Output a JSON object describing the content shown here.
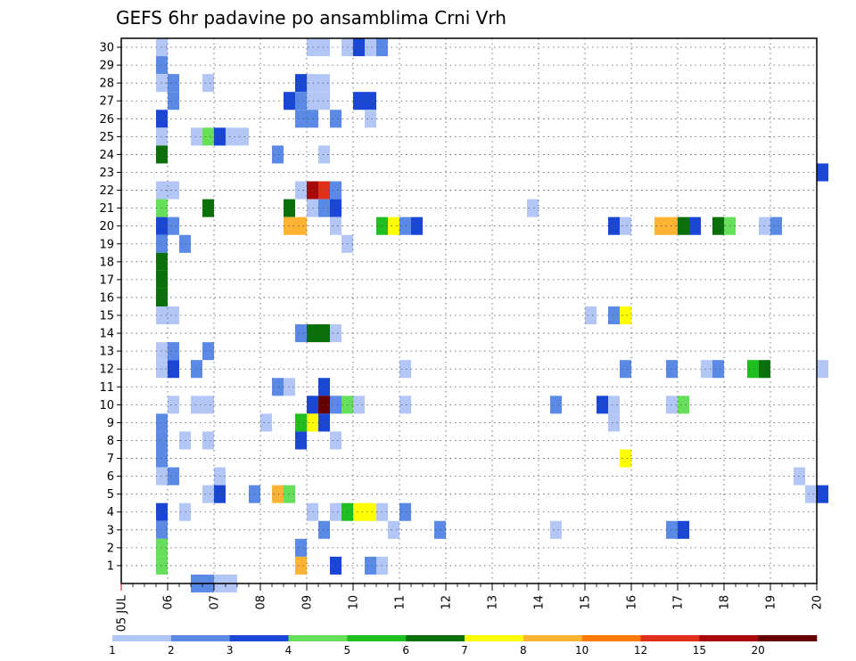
{
  "chart_data": {
    "type": "heatmap",
    "title": "GEFS 6hr padavine po ansamblima Crni Vrh",
    "x_tick_labels": [
      "05 JUL",
      "06",
      "07",
      "08",
      "09",
      "10",
      "11",
      "12",
      "13",
      "14",
      "15",
      "16",
      "17",
      "18",
      "19",
      "20"
    ],
    "y_tick_labels": [
      "1",
      "2",
      "3",
      "4",
      "5",
      "6",
      "7",
      "8",
      "9",
      "10",
      "11",
      "12",
      "13",
      "14",
      "15",
      "16",
      "17",
      "18",
      "19",
      "20",
      "21",
      "22",
      "23",
      "24",
      "25",
      "26",
      "27",
      "28",
      "29",
      "30"
    ],
    "x_range": [
      "05 JUL 00",
      "20 JUL 00"
    ],
    "x_step_hours": 6,
    "y_range": [
      0,
      30
    ],
    "grid": true,
    "colorbar": {
      "labels": [
        "1",
        "2",
        "3",
        "4",
        "5",
        "6",
        "7",
        "8",
        "10",
        "12",
        "15",
        "20"
      ],
      "colors": [
        "#b3c7f7",
        "#5a8ae6",
        "#1a46d6",
        "#66e05a",
        "#1fbf1f",
        "#0a700a",
        "#ffff00",
        "#ffb333",
        "#ff7a00",
        "#e0301a",
        "#a80a0a",
        "#660000"
      ]
    },
    "cells": [
      {
        "t": "05 JUL 18",
        "m": 30,
        "c": 1
      },
      {
        "t": "09 JUL 00",
        "m": 30,
        "c": 1
      },
      {
        "t": "09 JUL 06",
        "m": 30,
        "c": 1
      },
      {
        "t": "09 JUL 18",
        "m": 30,
        "c": 1
      },
      {
        "t": "10 JUL 00",
        "m": 30,
        "c": 3
      },
      {
        "t": "10 JUL 06",
        "m": 30,
        "c": 1
      },
      {
        "t": "10 JUL 12",
        "m": 30,
        "c": 2
      },
      {
        "t": "05 JUL 18",
        "m": 29,
        "c": 2
      },
      {
        "t": "05 JUL 18",
        "m": 28,
        "c": 1
      },
      {
        "t": "06 JUL 00",
        "m": 28,
        "c": 2
      },
      {
        "t": "06 JUL 18",
        "m": 28,
        "c": 1
      },
      {
        "t": "08 JUL 18",
        "m": 28,
        "c": 3
      },
      {
        "t": "09 JUL 00",
        "m": 28,
        "c": 1
      },
      {
        "t": "09 JUL 06",
        "m": 28,
        "c": 1
      },
      {
        "t": "06 JUL 00",
        "m": 27,
        "c": 2
      },
      {
        "t": "08 JUL 12",
        "m": 27,
        "c": 3
      },
      {
        "t": "08 JUL 18",
        "m": 27,
        "c": 2
      },
      {
        "t": "09 JUL 00",
        "m": 27,
        "c": 1
      },
      {
        "t": "09 JUL 06",
        "m": 27,
        "c": 1
      },
      {
        "t": "10 JUL 00",
        "m": 27,
        "c": 3
      },
      {
        "t": "10 JUL 06",
        "m": 27,
        "c": 3
      },
      {
        "t": "05 JUL 18",
        "m": 26,
        "c": 3
      },
      {
        "t": "08 JUL 18",
        "m": 26,
        "c": 2
      },
      {
        "t": "09 JUL 00",
        "m": 26,
        "c": 2
      },
      {
        "t": "09 JUL 12",
        "m": 26,
        "c": 2
      },
      {
        "t": "10 JUL 06",
        "m": 26,
        "c": 1
      },
      {
        "t": "05 JUL 18",
        "m": 25,
        "c": 1
      },
      {
        "t": "06 JUL 12",
        "m": 25,
        "c": 1
      },
      {
        "t": "06 JUL 18",
        "m": 25,
        "c": 4
      },
      {
        "t": "07 JUL 00",
        "m": 25,
        "c": 3
      },
      {
        "t": "07 JUL 06",
        "m": 25,
        "c": 1
      },
      {
        "t": "07 JUL 12",
        "m": 25,
        "c": 1
      },
      {
        "t": "05 JUL 18",
        "m": 24,
        "c": 6
      },
      {
        "t": "08 JUL 06",
        "m": 24,
        "c": 2
      },
      {
        "t": "09 JUL 06",
        "m": 24,
        "c": 1
      },
      {
        "t": "20 JUL 00",
        "m": 23,
        "c": 3
      },
      {
        "t": "05 JUL 18",
        "m": 22,
        "c": 1
      },
      {
        "t": "06 JUL 00",
        "m": 22,
        "c": 1
      },
      {
        "t": "08 JUL 18",
        "m": 22,
        "c": 1
      },
      {
        "t": "09 JUL 00",
        "m": 22,
        "c": 11
      },
      {
        "t": "09 JUL 06",
        "m": 22,
        "c": 10
      },
      {
        "t": "09 JUL 12",
        "m": 22,
        "c": 2
      },
      {
        "t": "05 JUL 18",
        "m": 21,
        "c": 4
      },
      {
        "t": "06 JUL 18",
        "m": 21,
        "c": 6
      },
      {
        "t": "08 JUL 12",
        "m": 21,
        "c": 6
      },
      {
        "t": "09 JUL 00",
        "m": 21,
        "c": 1
      },
      {
        "t": "09 JUL 06",
        "m": 21,
        "c": 2
      },
      {
        "t": "09 JUL 12",
        "m": 21,
        "c": 3
      },
      {
        "t": "13 JUL 18",
        "m": 21,
        "c": 1
      },
      {
        "t": "05 JUL 18",
        "m": 20,
        "c": 3
      },
      {
        "t": "06 JUL 00",
        "m": 20,
        "c": 2
      },
      {
        "t": "08 JUL 12",
        "m": 20,
        "c": 8
      },
      {
        "t": "08 JUL 18",
        "m": 20,
        "c": 8
      },
      {
        "t": "09 JUL 12",
        "m": 20,
        "c": 1
      },
      {
        "t": "10 JUL 12",
        "m": 20,
        "c": 5
      },
      {
        "t": "10 JUL 18",
        "m": 20,
        "c": 7
      },
      {
        "t": "11 JUL 00",
        "m": 20,
        "c": 2
      },
      {
        "t": "11 JUL 06",
        "m": 20,
        "c": 3
      },
      {
        "t": "15 JUL 12",
        "m": 20,
        "c": 3
      },
      {
        "t": "15 JUL 18",
        "m": 20,
        "c": 1
      },
      {
        "t": "16 JUL 12",
        "m": 20,
        "c": 8
      },
      {
        "t": "16 JUL 18",
        "m": 20,
        "c": 8
      },
      {
        "t": "17 JUL 00",
        "m": 20,
        "c": 6
      },
      {
        "t": "17 JUL 06",
        "m": 20,
        "c": 3
      },
      {
        "t": "17 JUL 18",
        "m": 20,
        "c": 6
      },
      {
        "t": "18 JUL 00",
        "m": 20,
        "c": 4
      },
      {
        "t": "18 JUL 18",
        "m": 20,
        "c": 1
      },
      {
        "t": "19 JUL 00",
        "m": 20,
        "c": 2
      },
      {
        "t": "05 JUL 18",
        "m": 19,
        "c": 2
      },
      {
        "t": "06 JUL 06",
        "m": 19,
        "c": 2
      },
      {
        "t": "09 JUL 18",
        "m": 19,
        "c": 1
      },
      {
        "t": "05 JUL 18",
        "m": 18,
        "c": 6
      },
      {
        "t": "05 JUL 18",
        "m": 17,
        "c": 6
      },
      {
        "t": "05 JUL 18",
        "m": 16,
        "c": 6
      },
      {
        "t": "05 JUL 18",
        "m": 15,
        "c": 1
      },
      {
        "t": "06 JUL 00",
        "m": 15,
        "c": 1
      },
      {
        "t": "15 JUL 00",
        "m": 15,
        "c": 1
      },
      {
        "t": "15 JUL 12",
        "m": 15,
        "c": 2
      },
      {
        "t": "15 JUL 18",
        "m": 15,
        "c": 7
      },
      {
        "t": "08 JUL 18",
        "m": 14,
        "c": 2
      },
      {
        "t": "09 JUL 00",
        "m": 14,
        "c": 6
      },
      {
        "t": "09 JUL 06",
        "m": 14,
        "c": 6
      },
      {
        "t": "09 JUL 12",
        "m": 14,
        "c": 1
      },
      {
        "t": "05 JUL 18",
        "m": 13,
        "c": 1
      },
      {
        "t": "06 JUL 00",
        "m": 13,
        "c": 2
      },
      {
        "t": "06 JUL 18",
        "m": 13,
        "c": 2
      },
      {
        "t": "05 JUL 18",
        "m": 12,
        "c": 1
      },
      {
        "t": "06 JUL 00",
        "m": 12,
        "c": 3
      },
      {
        "t": "06 JUL 12",
        "m": 12,
        "c": 2
      },
      {
        "t": "11 JUL 00",
        "m": 12,
        "c": 1
      },
      {
        "t": "15 JUL 18",
        "m": 12,
        "c": 2
      },
      {
        "t": "16 JUL 18",
        "m": 12,
        "c": 2
      },
      {
        "t": "17 JUL 12",
        "m": 12,
        "c": 1
      },
      {
        "t": "17 JUL 18",
        "m": 12,
        "c": 2
      },
      {
        "t": "18 JUL 12",
        "m": 12,
        "c": 5
      },
      {
        "t": "18 JUL 18",
        "m": 12,
        "c": 6
      },
      {
        "t": "20 JUL 00",
        "m": 12,
        "c": 1
      },
      {
        "t": "08 JUL 06",
        "m": 11,
        "c": 2
      },
      {
        "t": "08 JUL 12",
        "m": 11,
        "c": 1
      },
      {
        "t": "09 JUL 06",
        "m": 11,
        "c": 3
      },
      {
        "t": "06 JUL 00",
        "m": 10,
        "c": 1
      },
      {
        "t": "06 JUL 12",
        "m": 10,
        "c": 1
      },
      {
        "t": "06 JUL 18",
        "m": 10,
        "c": 1
      },
      {
        "t": "09 JUL 00",
        "m": 10,
        "c": 3
      },
      {
        "t": "09 JUL 06",
        "m": 10,
        "c": 12
      },
      {
        "t": "09 JUL 12",
        "m": 10,
        "c": 2
      },
      {
        "t": "09 JUL 18",
        "m": 10,
        "c": 4
      },
      {
        "t": "10 JUL 00",
        "m": 10,
        "c": 1
      },
      {
        "t": "11 JUL 00",
        "m": 10,
        "c": 1
      },
      {
        "t": "14 JUL 06",
        "m": 10,
        "c": 2
      },
      {
        "t": "15 JUL 06",
        "m": 10,
        "c": 3
      },
      {
        "t": "15 JUL 12",
        "m": 10,
        "c": 1
      },
      {
        "t": "16 JUL 18",
        "m": 10,
        "c": 1
      },
      {
        "t": "17 JUL 00",
        "m": 10,
        "c": 4
      },
      {
        "t": "05 JUL 18",
        "m": 9,
        "c": 2
      },
      {
        "t": "08 JUL 00",
        "m": 9,
        "c": 1
      },
      {
        "t": "08 JUL 18",
        "m": 9,
        "c": 5
      },
      {
        "t": "09 JUL 00",
        "m": 9,
        "c": 7
      },
      {
        "t": "09 JUL 06",
        "m": 9,
        "c": 3
      },
      {
        "t": "15 JUL 12",
        "m": 9,
        "c": 1
      },
      {
        "t": "05 JUL 18",
        "m": 8,
        "c": 2
      },
      {
        "t": "06 JUL 06",
        "m": 8,
        "c": 1
      },
      {
        "t": "06 JUL 18",
        "m": 8,
        "c": 1
      },
      {
        "t": "08 JUL 18",
        "m": 8,
        "c": 3
      },
      {
        "t": "09 JUL 12",
        "m": 8,
        "c": 1
      },
      {
        "t": "05 JUL 18",
        "m": 7,
        "c": 2
      },
      {
        "t": "15 JUL 18",
        "m": 7,
        "c": 7
      },
      {
        "t": "05 JUL 18",
        "m": 6,
        "c": 1
      },
      {
        "t": "06 JUL 00",
        "m": 6,
        "c": 2
      },
      {
        "t": "07 JUL 00",
        "m": 6,
        "c": 1
      },
      {
        "t": "19 JUL 12",
        "m": 6,
        "c": 1
      },
      {
        "t": "06 JUL 18",
        "m": 5,
        "c": 1
      },
      {
        "t": "07 JUL 00",
        "m": 5,
        "c": 3
      },
      {
        "t": "07 JUL 18",
        "m": 5,
        "c": 2
      },
      {
        "t": "08 JUL 06",
        "m": 5,
        "c": 8
      },
      {
        "t": "08 JUL 12",
        "m": 5,
        "c": 4
      },
      {
        "t": "19 JUL 18",
        "m": 5,
        "c": 1
      },
      {
        "t": "20 JUL 00",
        "m": 5,
        "c": 3
      },
      {
        "t": "05 JUL 18",
        "m": 4,
        "c": 3
      },
      {
        "t": "06 JUL 06",
        "m": 4,
        "c": 1
      },
      {
        "t": "09 JUL 00",
        "m": 4,
        "c": 1
      },
      {
        "t": "09 JUL 12",
        "m": 4,
        "c": 1
      },
      {
        "t": "09 JUL 18",
        "m": 4,
        "c": 5
      },
      {
        "t": "10 JUL 00",
        "m": 4,
        "c": 7
      },
      {
        "t": "10 JUL 06",
        "m": 4,
        "c": 7
      },
      {
        "t": "10 JUL 12",
        "m": 4,
        "c": 1
      },
      {
        "t": "11 JUL 00",
        "m": 4,
        "c": 2
      },
      {
        "t": "05 JUL 18",
        "m": 3,
        "c": 2
      },
      {
        "t": "09 JUL 06",
        "m": 3,
        "c": 2
      },
      {
        "t": "10 JUL 18",
        "m": 3,
        "c": 1
      },
      {
        "t": "11 JUL 18",
        "m": 3,
        "c": 2
      },
      {
        "t": "14 JUL 06",
        "m": 3,
        "c": 1
      },
      {
        "t": "16 JUL 18",
        "m": 3,
        "c": 2
      },
      {
        "t": "17 JUL 00",
        "m": 3,
        "c": 3
      },
      {
        "t": "05 JUL 18",
        "m": 2,
        "c": 4
      },
      {
        "t": "08 JUL 18",
        "m": 2,
        "c": 2
      },
      {
        "t": "05 JUL 18",
        "m": 1,
        "c": 4
      },
      {
        "t": "08 JUL 18",
        "m": 1,
        "c": 8
      },
      {
        "t": "09 JUL 12",
        "m": 1,
        "c": 3
      },
      {
        "t": "10 JUL 06",
        "m": 1,
        "c": 2
      },
      {
        "t": "10 JUL 12",
        "m": 1,
        "c": 1
      },
      {
        "t": "06 JUL 12",
        "m": 0,
        "c": 2
      },
      {
        "t": "06 JUL 18",
        "m": 0,
        "c": 2
      },
      {
        "t": "07 JUL 00",
        "m": 0,
        "c": 1
      },
      {
        "t": "07 JUL 06",
        "m": 0,
        "c": 1
      }
    ]
  }
}
